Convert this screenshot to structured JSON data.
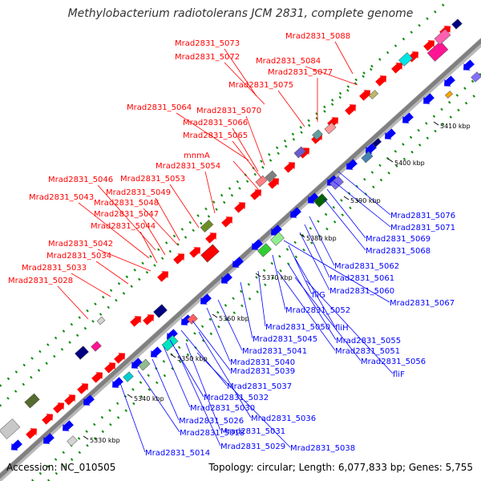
{
  "title": "Methylobacterium radiotolerans JCM 2831, complete genome",
  "footer": {
    "accession": "Accession: NC_010505",
    "topology": "Topology: circular; Length: 6,077,833 bp; Genes: 5,755"
  },
  "colors": {
    "forward": "#ff0000",
    "reverse": "#0000ff",
    "backbone": "#9a9a9a",
    "dots": "#0a8a0a"
  },
  "ticks": [
    "5330 kbp",
    "5340 kbp",
    "5350 kbp",
    "5360 kbp",
    "5370 kbp",
    "5380 kbp",
    "5390 kbp",
    "5400 kbp",
    "5410 kbp"
  ],
  "forward_labels": [
    "Mrad2831_5088",
    "Mrad2831_5073",
    "Mrad2831_5072",
    "Mrad2831_5084",
    "Mrad2831_5077",
    "Mrad2831_5075",
    "Mrad2831_5064",
    "Mrad2831_5070",
    "Mrad2831_5066",
    "Mrad2831_5065",
    "mnmA",
    "Mrad2831_5054",
    "Mrad2831_5053",
    "Mrad2831_5046",
    "Mrad2831_5049",
    "Mrad2831_5043",
    "Mrad2831_5048",
    "Mrad2831_5047",
    "Mrad2831_5044",
    "Mrad2831_5042",
    "Mrad2831_5034",
    "Mrad2831_5033",
    "Mrad2831_5028"
  ],
  "reverse_labels": [
    "Mrad2831_5076",
    "Mrad2831_5071",
    "Mrad2831_5069",
    "Mrad2831_5068",
    "Mrad2831_5062",
    "Mrad2831_5061",
    "Mrad2831_5060",
    "Mrad2831_5067",
    "fliG",
    "Mrad2831_5052",
    "fliH",
    "Mrad2831_5050",
    "Mrad2831_5055",
    "Mrad2831_5045",
    "Mrad2831_5051",
    "Mrad2831_5041",
    "Mrad2831_5056",
    "Mrad2831_5040",
    "fliF",
    "Mrad2831_5039",
    "Mrad2831_5037",
    "Mrad2831_5032",
    "Mrad2831_5030",
    "Mrad2831_5036",
    "Mrad2831_5026",
    "Mrad2831_5031",
    "Mrad2831_5018",
    "Mrad2831_5029",
    "Mrad2831_5038",
    "Mrad2831_5014"
  ]
}
